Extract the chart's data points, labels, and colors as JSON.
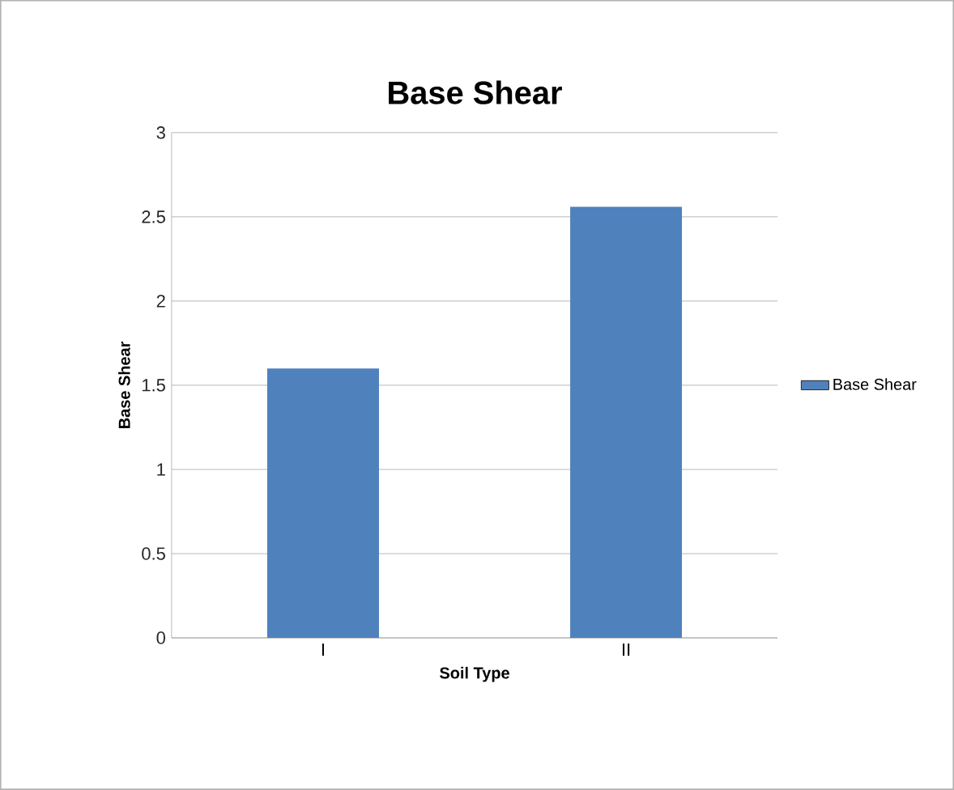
{
  "chart_data": {
    "type": "bar",
    "title": "Base Shear",
    "xlabel": "Soil Type",
    "ylabel": "Base Shear",
    "categories": [
      "I",
      "II"
    ],
    "series": [
      {
        "name": "Base Shear",
        "color": "#4f81bd",
        "values": [
          1.6,
          2.56
        ]
      }
    ],
    "ylim": [
      0,
      3
    ],
    "yticks": [
      0,
      0.5,
      1,
      1.5,
      2,
      2.5,
      3
    ],
    "grid": "y",
    "legend": "right"
  }
}
